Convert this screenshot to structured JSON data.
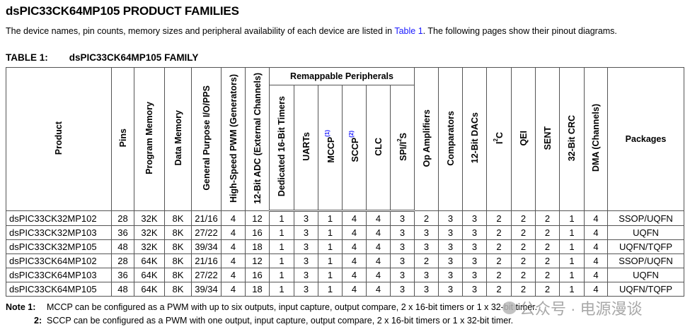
{
  "title": "dsPIC33CK64MP105 PRODUCT FAMILIES",
  "intro": {
    "before": "The device names, pin counts, memory sizes and peripheral availability of each device are listed in ",
    "link": "Table 1",
    "after": ". The following pages show their pinout diagrams."
  },
  "table_caption": {
    "number": "TABLE 1:",
    "name": "dsPIC33CK64MP105 FAMILY"
  },
  "group_header": "Remappable Peripherals",
  "columns": [
    {
      "label": "Product"
    },
    {
      "label": "Pins"
    },
    {
      "label": "Program Memory"
    },
    {
      "label": "Data Memory"
    },
    {
      "label": "General Purpose I/O/PPS"
    },
    {
      "label": "High-Speed PWM (Generators)"
    },
    {
      "label": "12-Bit ADC (External Channels)"
    },
    {
      "label": "Dedicated 16-Bit Timers"
    },
    {
      "label": "UARTs"
    },
    {
      "label": "MCCP",
      "ref": "(1)"
    },
    {
      "label": "SCCP",
      "ref": "(2)"
    },
    {
      "label": "CLC"
    },
    {
      "label": "SPI/I",
      "sup": "2",
      "suffix": "S"
    },
    {
      "label": "Op Amplifiers"
    },
    {
      "label": "Comparators"
    },
    {
      "label": "12-Bit DACs"
    },
    {
      "label": "I",
      "sup": "2",
      "suffix": "C"
    },
    {
      "label": "QEI"
    },
    {
      "label": "SENT"
    },
    {
      "label": "32-Bit CRC"
    },
    {
      "label": "DMA (Channels)"
    },
    {
      "label": "Packages"
    }
  ],
  "rows": [
    [
      "dsPIC33CK32MP102",
      "28",
      "32K",
      "8K",
      "21/16",
      "4",
      "12",
      "1",
      "3",
      "1",
      "4",
      "4",
      "3",
      "2",
      "3",
      "3",
      "2",
      "2",
      "2",
      "1",
      "4",
      "SSOP/UQFN"
    ],
    [
      "dsPIC33CK32MP103",
      "36",
      "32K",
      "8K",
      "27/22",
      "4",
      "16",
      "1",
      "3",
      "1",
      "4",
      "4",
      "3",
      "3",
      "3",
      "3",
      "2",
      "2",
      "2",
      "1",
      "4",
      "UQFN"
    ],
    [
      "dsPIC33CK32MP105",
      "48",
      "32K",
      "8K",
      "39/34",
      "4",
      "18",
      "1",
      "3",
      "1",
      "4",
      "4",
      "3",
      "3",
      "3",
      "3",
      "2",
      "2",
      "2",
      "1",
      "4",
      "UQFN/TQFP"
    ],
    [
      "dsPIC33CK64MP102",
      "28",
      "64K",
      "8K",
      "21/16",
      "4",
      "12",
      "1",
      "3",
      "1",
      "4",
      "4",
      "3",
      "2",
      "3",
      "3",
      "2",
      "2",
      "2",
      "1",
      "4",
      "SSOP/UQFN"
    ],
    [
      "dsPIC33CK64MP103",
      "36",
      "64K",
      "8K",
      "27/22",
      "4",
      "16",
      "1",
      "3",
      "1",
      "4",
      "4",
      "3",
      "3",
      "3",
      "3",
      "2",
      "2",
      "2",
      "1",
      "4",
      "UQFN"
    ],
    [
      "dsPIC33CK64MP105",
      "48",
      "64K",
      "8K",
      "39/34",
      "4",
      "18",
      "1",
      "3",
      "1",
      "4",
      "4",
      "3",
      "3",
      "3",
      "3",
      "2",
      "2",
      "2",
      "1",
      "4",
      "UQFN/TQFP"
    ]
  ],
  "notes": {
    "label": "Note  1:",
    "note1": "MCCP can be configured as a PWM with up to six outputs, input capture, output compare, 2 x 16-bit timers or 1 x 32-bit timer.",
    "note2_num": "2:",
    "note2": "SCCP can be configured as a PWM with one output, input capture, output compare, 2 x 16-bit timers or 1 x 32-bit timer."
  },
  "watermark": "公众号 · 电源漫谈",
  "colors": {
    "link": "#1a1aff",
    "border": "#555555",
    "watermark": "#9a9a9a"
  }
}
